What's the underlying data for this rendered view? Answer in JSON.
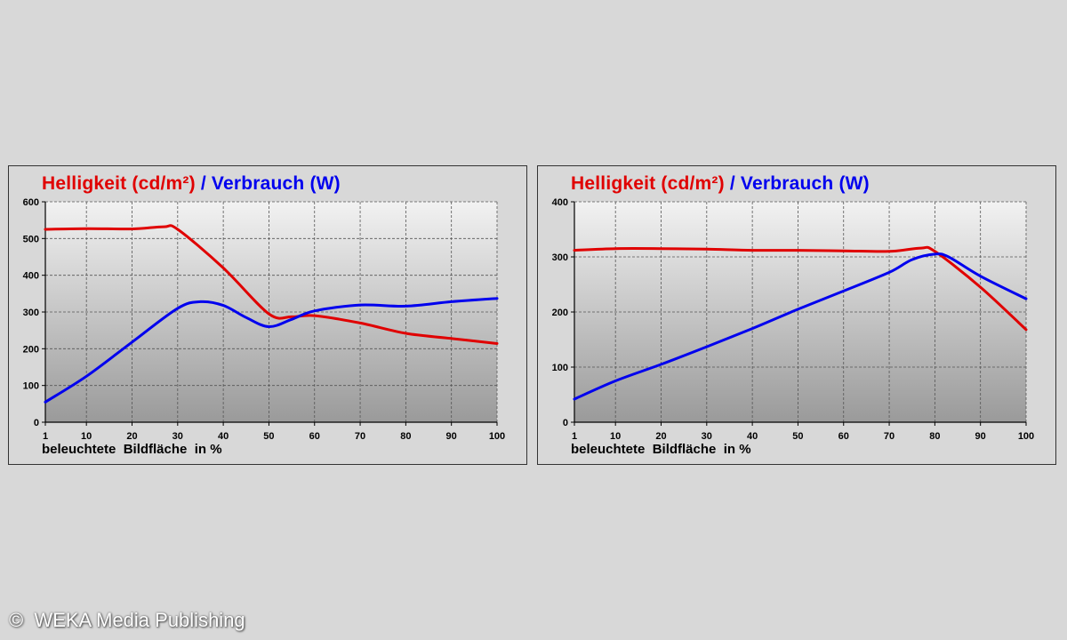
{
  "colors": {
    "brightness": "#e00000",
    "consumption": "#0000ee",
    "grid": "#555555"
  },
  "copyright": "©  WEKA Media Publishing",
  "chart_data": [
    {
      "type": "line",
      "title_parts": {
        "brightness": "Helligkeit (cd/m²)",
        "separator": " / ",
        "consumption": "Verbrauch (W)"
      },
      "xlabel": "beleuchtete  Bildfläche  in %",
      "x_ticks": [
        1,
        10,
        20,
        30,
        40,
        50,
        60,
        70,
        80,
        90,
        100
      ],
      "y_ticks": [
        0,
        100,
        200,
        300,
        400,
        500,
        600
      ],
      "ylim": [
        0,
        600
      ],
      "grid": true,
      "series": [
        {
          "key": "brightness",
          "x": [
            1,
            10,
            20,
            27,
            30,
            40,
            50,
            55,
            60,
            70,
            80,
            90,
            100
          ],
          "values": [
            525,
            527,
            526,
            532,
            525,
            420,
            295,
            287,
            290,
            270,
            242,
            228,
            214
          ]
        },
        {
          "key": "consumption",
          "x": [
            1,
            10,
            20,
            30,
            35,
            40,
            45,
            50,
            55,
            60,
            70,
            80,
            90,
            100
          ],
          "values": [
            55,
            125,
            218,
            310,
            328,
            318,
            285,
            260,
            280,
            303,
            319,
            316,
            328,
            337
          ]
        }
      ]
    },
    {
      "type": "line",
      "title_parts": {
        "brightness": "Helligkeit (cd/m²)",
        "separator": " / ",
        "consumption": "Verbrauch (W)"
      },
      "xlabel": "beleuchtete  Bildfläche  in %",
      "x_ticks": [
        1,
        10,
        20,
        30,
        40,
        50,
        60,
        70,
        80,
        90,
        100
      ],
      "y_ticks": [
        0,
        100,
        200,
        300,
        400
      ],
      "ylim": [
        0,
        400
      ],
      "grid": true,
      "series": [
        {
          "key": "brightness",
          "x": [
            1,
            10,
            20,
            30,
            40,
            50,
            60,
            70,
            77,
            80,
            90,
            100
          ],
          "values": [
            312,
            315,
            315,
            314,
            312,
            312,
            311,
            310,
            316,
            310,
            245,
            168
          ]
        },
        {
          "key": "consumption",
          "x": [
            1,
            10,
            20,
            30,
            40,
            50,
            60,
            70,
            75,
            80,
            83,
            90,
            100
          ],
          "values": [
            42,
            75,
            105,
            137,
            170,
            205,
            238,
            272,
            295,
            305,
            300,
            265,
            224
          ]
        }
      ]
    }
  ]
}
